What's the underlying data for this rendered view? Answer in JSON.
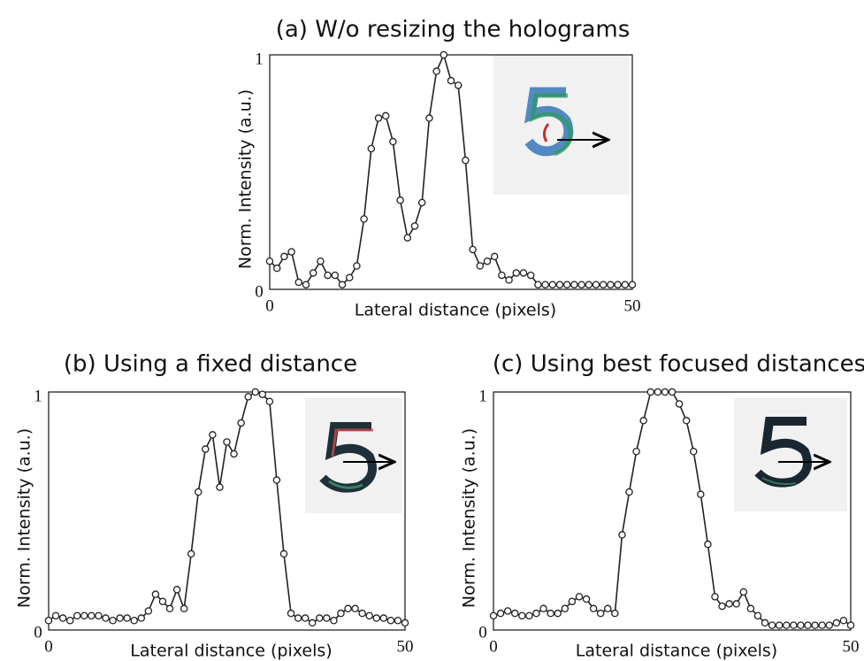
{
  "chart_data": [
    {
      "type": "line",
      "title": "(a) W/o resizing the holograms",
      "x_label": "Lateral distance (pixels)",
      "y_label": "Norm. Intensity (a.u.)",
      "x": [
        0,
        1,
        2,
        3,
        4,
        5,
        6,
        7,
        8,
        9,
        10,
        11,
        12,
        13,
        14,
        15,
        16,
        17,
        18,
        19,
        20,
        21,
        22,
        23,
        24,
        25,
        26,
        27,
        28,
        29,
        30,
        31,
        32,
        33,
        34,
        35,
        36,
        37,
        38,
        39,
        40,
        41,
        42,
        43,
        44,
        45,
        46,
        47,
        48,
        49,
        50
      ],
      "series": [
        {
          "color": "#222222",
          "values": [
            0.12,
            0.09,
            0.14,
            0.16,
            0.03,
            0.02,
            0.07,
            0.12,
            0.06,
            0.06,
            0.02,
            0.05,
            0.1,
            0.3,
            0.6,
            0.73,
            0.74,
            0.63,
            0.38,
            0.22,
            0.27,
            0.37,
            0.73,
            0.93,
            1.0,
            0.89,
            0.87,
            0.55,
            0.17,
            0.1,
            0.12,
            0.14,
            0.06,
            0.04,
            0.07,
            0.07,
            0.06,
            0.02,
            0.02,
            0.02,
            0.02,
            0.02,
            0.02,
            0.02,
            0.02,
            0.02,
            0.02,
            0.02,
            0.02,
            0.02,
            0.02
          ]
        }
      ],
      "xlim": [
        0,
        50
      ],
      "xticks": [
        0,
        50
      ],
      "ylim": [
        0,
        1
      ],
      "yticks": [
        0,
        1
      ]
    },
    {
      "type": "line",
      "title": "(b) Using a fixed distance",
      "x_label": "Lateral distance (pixels)",
      "y_label": "Norm. Intensity (a.u.)",
      "x": [
        0,
        1,
        2,
        3,
        4,
        5,
        6,
        7,
        8,
        9,
        10,
        11,
        12,
        13,
        14,
        15,
        16,
        17,
        18,
        19,
        20,
        21,
        22,
        23,
        24,
        25,
        26,
        27,
        28,
        29,
        30,
        31,
        32,
        33,
        34,
        35,
        36,
        37,
        38,
        39,
        40,
        41,
        42,
        43,
        44,
        45,
        46,
        47,
        48,
        49,
        50
      ],
      "series": [
        {
          "color": "#222222",
          "values": [
            0.04,
            0.06,
            0.05,
            0.04,
            0.06,
            0.06,
            0.06,
            0.06,
            0.05,
            0.04,
            0.05,
            0.05,
            0.04,
            0.05,
            0.08,
            0.15,
            0.12,
            0.09,
            0.17,
            0.09,
            0.32,
            0.58,
            0.76,
            0.82,
            0.6,
            0.79,
            0.74,
            0.87,
            0.98,
            1.0,
            0.99,
            0.96,
            0.63,
            0.32,
            0.07,
            0.05,
            0.05,
            0.03,
            0.05,
            0.05,
            0.04,
            0.07,
            0.09,
            0.09,
            0.07,
            0.06,
            0.05,
            0.05,
            0.04,
            0.04,
            0.03
          ]
        }
      ],
      "xlim": [
        0,
        50
      ],
      "xticks": [
        0,
        50
      ],
      "ylim": [
        0,
        1
      ],
      "yticks": [
        0,
        1
      ]
    },
    {
      "type": "line",
      "title": "(c) Using best focused distances",
      "x_label": "Lateral distance (pixels)",
      "y_label": "Norm. Intensity (a.u.)",
      "x": [
        0,
        1,
        2,
        3,
        4,
        5,
        6,
        7,
        8,
        9,
        10,
        11,
        12,
        13,
        14,
        15,
        16,
        17,
        18,
        19,
        20,
        21,
        22,
        23,
        24,
        25,
        26,
        27,
        28,
        29,
        30,
        31,
        32,
        33,
        34,
        35,
        36,
        37,
        38,
        39,
        40,
        41,
        42,
        43,
        44,
        45,
        46,
        47,
        48,
        49,
        50
      ],
      "series": [
        {
          "color": "#222222",
          "values": [
            0.06,
            0.07,
            0.08,
            0.07,
            0.06,
            0.06,
            0.07,
            0.09,
            0.07,
            0.07,
            0.09,
            0.12,
            0.14,
            0.13,
            0.09,
            0.07,
            0.09,
            0.07,
            0.4,
            0.58,
            0.75,
            0.88,
            1.0,
            1.0,
            1.0,
            1.0,
            0.95,
            0.88,
            0.75,
            0.57,
            0.36,
            0.14,
            0.1,
            0.11,
            0.11,
            0.16,
            0.09,
            0.06,
            0.03,
            0.02,
            0.02,
            0.02,
            0.02,
            0.02,
            0.02,
            0.02,
            0.02,
            0.02,
            0.03,
            0.04,
            0.02
          ]
        }
      ],
      "xlim": [
        0,
        50
      ],
      "xticks": [
        0,
        50
      ],
      "ylim": [
        0,
        1
      ],
      "yticks": [
        0,
        1
      ]
    }
  ]
}
